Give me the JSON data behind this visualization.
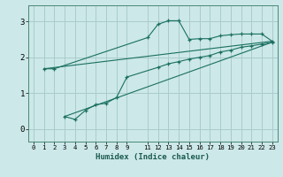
{
  "xlabel": "Humidex (Indice chaleur)",
  "bg_color": "#cce8e8",
  "grid_color": "#aacccc",
  "line_color": "#1a7060",
  "xlim": [
    -0.5,
    23.5
  ],
  "ylim": [
    -0.35,
    3.45
  ],
  "xticks": [
    0,
    1,
    2,
    3,
    4,
    5,
    6,
    7,
    8,
    9,
    11,
    12,
    13,
    14,
    15,
    16,
    17,
    18,
    19,
    20,
    21,
    22,
    23
  ],
  "yticks": [
    0,
    1,
    2,
    3
  ],
  "line1_x": [
    1,
    2,
    11,
    12,
    13,
    14,
    15,
    16,
    17,
    18,
    19,
    20,
    21,
    22,
    23
  ],
  "line1_y": [
    1.68,
    1.68,
    2.55,
    2.92,
    3.02,
    3.02,
    2.5,
    2.52,
    2.52,
    2.6,
    2.63,
    2.65,
    2.65,
    2.65,
    2.45
  ],
  "line2_x": [
    1,
    23
  ],
  "line2_y": [
    1.68,
    2.45
  ],
  "line3_x": [
    3,
    4,
    5,
    6,
    7,
    8,
    9,
    12,
    13,
    14,
    15,
    16,
    17,
    18,
    19,
    20,
    21,
    22,
    23
  ],
  "line3_y": [
    0.35,
    0.27,
    0.52,
    0.68,
    0.72,
    0.88,
    1.45,
    1.72,
    1.82,
    1.88,
    1.95,
    2.0,
    2.05,
    2.15,
    2.2,
    2.28,
    2.32,
    2.37,
    2.42
  ],
  "line4_x": [
    3,
    23
  ],
  "line4_y": [
    0.35,
    2.42
  ]
}
